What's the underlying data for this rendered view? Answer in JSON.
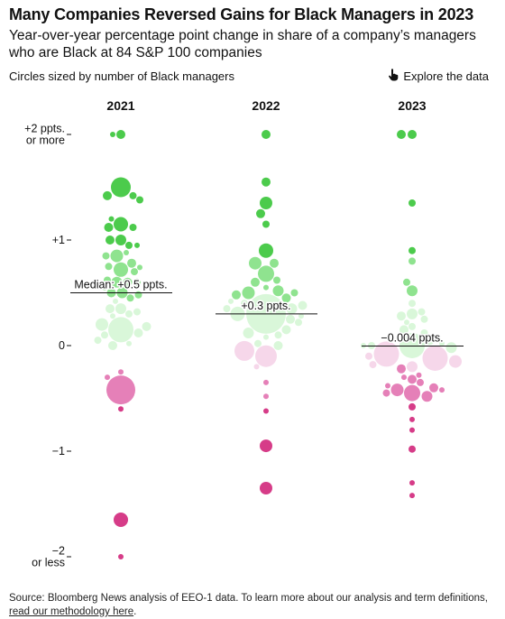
{
  "header": {
    "title": "Many Companies Reversed Gains for Black Managers in 2023",
    "subtitle": "Year-over-year percentage point change in share of a company’s managers who are Black at 84 S&P 100 companies",
    "size_note": "Circles sized by number of Black managers",
    "explore_label": "Explore the data"
  },
  "footer": {
    "source_text": "Source: Bloomberg News analysis of EEO-1 data. To learn more about our analysis and term definitions, ",
    "source_link": "read our methodology here",
    "source_end": "."
  },
  "colors": {
    "strong_positive": "#4ccb4c",
    "mid_positive": "#8fe38f",
    "light_positive": "#d9f7d9",
    "light_negative": "#f6d7ea",
    "mid_negative": "#e580b8",
    "strong_negative": "#d63c88"
  },
  "chart_data": {
    "type": "beeswarm",
    "y_axis": {
      "ylim": [
        -2.05,
        2.05
      ],
      "ticks": [
        {
          "value": 2,
          "label": [
            "+2 ppts.",
            "or more"
          ]
        },
        {
          "value": 1,
          "label": [
            "+1"
          ]
        },
        {
          "value": 0,
          "label": [
            "0"
          ]
        },
        {
          "value": -1,
          "label": [
            "−1"
          ]
        },
        {
          "value": -2,
          "label": [
            "−2",
            "or less"
          ]
        }
      ]
    },
    "series": [
      {
        "name": "2021",
        "median": 0.5,
        "median_label": "Median: +0.5 ppts.",
        "points": [
          {
            "y": 2.0,
            "size": 5
          },
          {
            "y": 2.0,
            "size": 3
          },
          {
            "y": 1.5,
            "size": 11
          },
          {
            "y": 1.42,
            "size": 5
          },
          {
            "y": 1.42,
            "size": 4
          },
          {
            "y": 1.38,
            "size": 4
          },
          {
            "y": 1.15,
            "size": 8
          },
          {
            "y": 1.12,
            "size": 5
          },
          {
            "y": 1.12,
            "size": 4
          },
          {
            "y": 1.2,
            "size": 3
          },
          {
            "y": 1.0,
            "size": 6
          },
          {
            "y": 1.0,
            "size": 5
          },
          {
            "y": 0.95,
            "size": 4
          },
          {
            "y": 0.95,
            "size": 3
          },
          {
            "y": 0.85,
            "size": 7
          },
          {
            "y": 0.85,
            "size": 4
          },
          {
            "y": 0.88,
            "size": 3
          },
          {
            "y": 0.72,
            "size": 8
          },
          {
            "y": 0.78,
            "size": 5
          },
          {
            "y": 0.75,
            "size": 4
          },
          {
            "y": 0.7,
            "size": 4
          },
          {
            "y": 0.74,
            "size": 3
          },
          {
            "y": 0.6,
            "size": 6
          },
          {
            "y": 0.6,
            "size": 5
          },
          {
            "y": 0.62,
            "size": 4
          },
          {
            "y": 0.6,
            "size": 4
          },
          {
            "y": 0.55,
            "size": 3
          },
          {
            "y": 0.5,
            "size": 6
          },
          {
            "y": 0.5,
            "size": 5
          },
          {
            "y": 0.45,
            "size": 4
          },
          {
            "y": 0.48,
            "size": 4
          },
          {
            "y": 0.42,
            "size": 3
          },
          {
            "y": 0.35,
            "size": 6
          },
          {
            "y": 0.35,
            "size": 5
          },
          {
            "y": 0.3,
            "size": 4
          },
          {
            "y": 0.32,
            "size": 4
          },
          {
            "y": 0.28,
            "size": 3
          },
          {
            "y": 0.15,
            "size": 14
          },
          {
            "y": 0.2,
            "size": 7
          },
          {
            "y": 0.12,
            "size": 5
          },
          {
            "y": 0.18,
            "size": 5
          },
          {
            "y": 0.1,
            "size": 4
          },
          {
            "y": 0.05,
            "size": 4
          },
          {
            "y": 0.0,
            "size": 5
          },
          {
            "y": 0.02,
            "size": 3
          },
          {
            "y": -0.25,
            "size": 3
          },
          {
            "y": -0.3,
            "size": 3
          },
          {
            "y": -0.42,
            "size": 16
          },
          {
            "y": -0.6,
            "size": 3
          },
          {
            "y": -1.65,
            "size": 8
          },
          {
            "y": -2.0,
            "size": 3
          }
        ]
      },
      {
        "name": "2022",
        "median": 0.3,
        "median_label": "+0.3 ppts.",
        "points": [
          {
            "y": 2.0,
            "size": 5
          },
          {
            "y": 1.55,
            "size": 5
          },
          {
            "y": 1.35,
            "size": 7
          },
          {
            "y": 1.25,
            "size": 5
          },
          {
            "y": 1.15,
            "size": 4
          },
          {
            "y": 0.9,
            "size": 8
          },
          {
            "y": 0.78,
            "size": 5
          },
          {
            "y": 0.68,
            "size": 9
          },
          {
            "y": 0.78,
            "size": 7
          },
          {
            "y": 0.6,
            "size": 5
          },
          {
            "y": 0.62,
            "size": 4
          },
          {
            "y": 0.5,
            "size": 7
          },
          {
            "y": 0.52,
            "size": 6
          },
          {
            "y": 0.45,
            "size": 5
          },
          {
            "y": 0.48,
            "size": 5
          },
          {
            "y": 0.5,
            "size": 4
          },
          {
            "y": 0.55,
            "size": 3
          },
          {
            "y": 0.35,
            "size": 6
          },
          {
            "y": 0.38,
            "size": 5
          },
          {
            "y": 0.4,
            "size": 4
          },
          {
            "y": 0.35,
            "size": 4
          },
          {
            "y": 0.42,
            "size": 3
          },
          {
            "y": 0.3,
            "size": 22
          },
          {
            "y": 0.3,
            "size": 8
          },
          {
            "y": 0.25,
            "size": 5
          },
          {
            "y": 0.22,
            "size": 4
          },
          {
            "y": 0.28,
            "size": 3
          },
          {
            "y": 0.12,
            "size": 6
          },
          {
            "y": 0.15,
            "size": 5
          },
          {
            "y": 0.1,
            "size": 4
          },
          {
            "y": 0.08,
            "size": 3
          },
          {
            "y": -0.05,
            "size": 11
          },
          {
            "y": -0.1,
            "size": 12
          },
          {
            "y": 0.0,
            "size": 5
          },
          {
            "y": 0.02,
            "size": 4
          },
          {
            "y": -0.2,
            "size": 3
          },
          {
            "y": -0.35,
            "size": 3
          },
          {
            "y": -0.48,
            "size": 3
          },
          {
            "y": -0.62,
            "size": 3
          },
          {
            "y": -0.95,
            "size": 7
          },
          {
            "y": -1.35,
            "size": 7
          }
        ]
      },
      {
        "name": "2023",
        "median": -0.004,
        "median_label": "−0.004 ppts.",
        "points": [
          {
            "y": 2.0,
            "size": 5
          },
          {
            "y": 2.0,
            "size": 5
          },
          {
            "y": 1.35,
            "size": 4
          },
          {
            "y": 0.9,
            "size": 4
          },
          {
            "y": 0.8,
            "size": 4
          },
          {
            "y": 0.6,
            "size": 4
          },
          {
            "y": 0.52,
            "size": 6
          },
          {
            "y": 0.4,
            "size": 4
          },
          {
            "y": 0.3,
            "size": 6
          },
          {
            "y": 0.28,
            "size": 5
          },
          {
            "y": 0.32,
            "size": 4
          },
          {
            "y": 0.25,
            "size": 4
          },
          {
            "y": 0.22,
            "size": 3
          },
          {
            "y": 0.15,
            "size": 5
          },
          {
            "y": 0.12,
            "size": 4
          },
          {
            "y": 0.18,
            "size": 4
          },
          {
            "y": 0.0,
            "size": 14
          },
          {
            "y": -0.08,
            "size": 14
          },
          {
            "y": -0.12,
            "size": 14
          },
          {
            "y": -0.02,
            "size": 6
          },
          {
            "y": 0.05,
            "size": 5
          },
          {
            "y": 0.0,
            "size": 4
          },
          {
            "y": 0.02,
            "size": 3
          },
          {
            "y": 0.0,
            "size": 3
          },
          {
            "y": -0.15,
            "size": 7
          },
          {
            "y": -0.2,
            "size": 6
          },
          {
            "y": -0.22,
            "size": 5
          },
          {
            "y": -0.18,
            "size": 4
          },
          {
            "y": -0.1,
            "size": 4
          },
          {
            "y": -0.32,
            "size": 5
          },
          {
            "y": -0.35,
            "size": 4
          },
          {
            "y": -0.38,
            "size": 3
          },
          {
            "y": -0.3,
            "size": 3
          },
          {
            "y": -0.28,
            "size": 3
          },
          {
            "y": -0.45,
            "size": 9
          },
          {
            "y": -0.42,
            "size": 7
          },
          {
            "y": -0.48,
            "size": 6
          },
          {
            "y": -0.4,
            "size": 5
          },
          {
            "y": -0.45,
            "size": 4
          },
          {
            "y": -0.42,
            "size": 3
          },
          {
            "y": -0.58,
            "size": 4
          },
          {
            "y": -0.7,
            "size": 3
          },
          {
            "y": -0.8,
            "size": 3
          },
          {
            "y": -0.98,
            "size": 4
          },
          {
            "y": -1.3,
            "size": 3
          },
          {
            "y": -1.42,
            "size": 3
          }
        ]
      }
    ]
  }
}
